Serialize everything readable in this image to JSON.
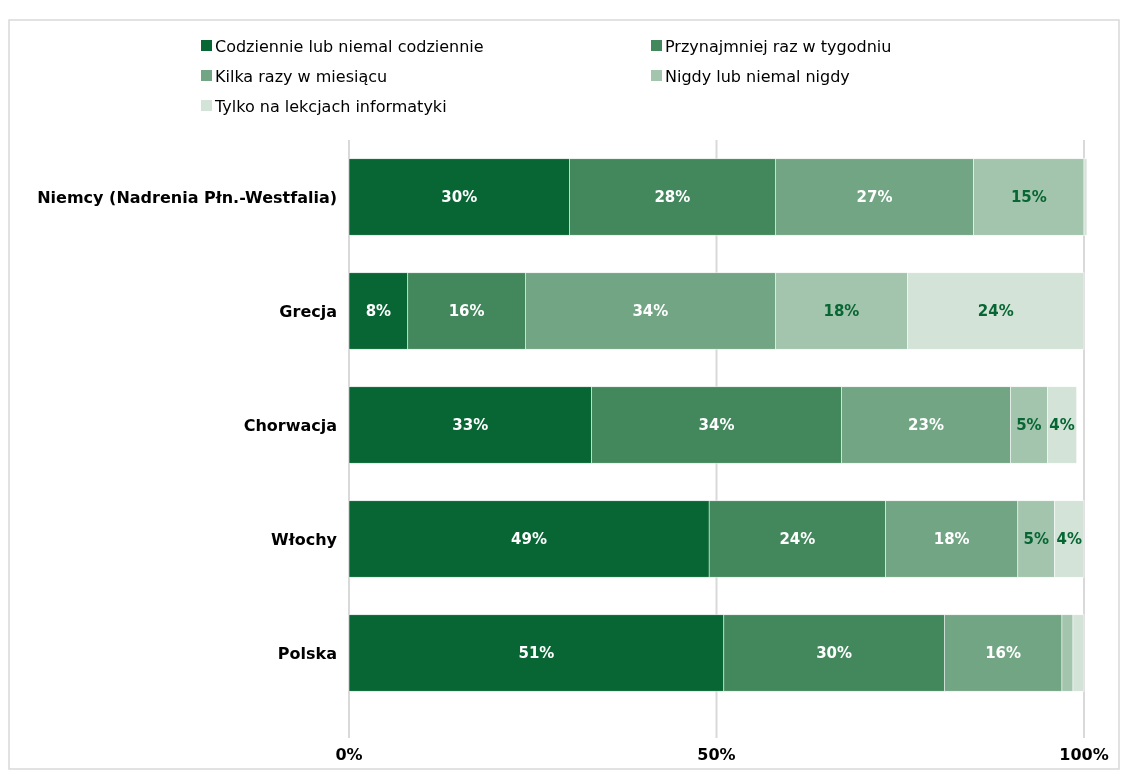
{
  "chart_data": {
    "type": "bar",
    "orientation": "horizontal",
    "stacked": true,
    "categories": [
      "Niemcy (Nadrenia Płn.-Westfalia)",
      "Grecja",
      "Chorwacja",
      "Włochy",
      "Polska"
    ],
    "series": [
      {
        "name": "Codziennie lub niemal codziennie",
        "color": "#076633",
        "values": [
          30,
          8,
          33,
          49,
          51
        ],
        "value_labels": [
          "30%",
          "8%",
          "33%",
          "49%",
          "51%"
        ]
      },
      {
        "name": "Przynajmniej raz w tygodniu",
        "color": "#43885c",
        "values": [
          28,
          16,
          34,
          24,
          30
        ],
        "value_labels": [
          "28%",
          "16%",
          "34%",
          "24%",
          "30%"
        ]
      },
      {
        "name": "Kilka razy w miesiącu",
        "color": "#72a583",
        "values": [
          27,
          34,
          23,
          18,
          16
        ],
        "value_labels": [
          "27%",
          "34%",
          "23%",
          "18%",
          "16%"
        ]
      },
      {
        "name": "Nigdy lub niemal nigdy",
        "color": "#a3c4ad",
        "values": [
          15,
          18,
          5,
          5,
          1.5
        ],
        "value_labels": [
          "15%",
          "18%",
          "5%",
          "5%",
          null
        ]
      },
      {
        "name": "Tylko na lekcjach informatyki",
        "color": "#d3e3d7",
        "values": [
          0.4,
          24,
          4,
          4,
          1.5
        ],
        "value_labels": [
          null,
          "24%",
          "4%",
          "4%",
          null
        ]
      }
    ],
    "xlim": [
      0,
      100
    ],
    "xticks": [
      {
        "value": 0,
        "label": "0%"
      },
      {
        "value": 50,
        "label": "50%"
      },
      {
        "value": 100,
        "label": "100%"
      }
    ],
    "grid": "x",
    "legend": "top"
  }
}
